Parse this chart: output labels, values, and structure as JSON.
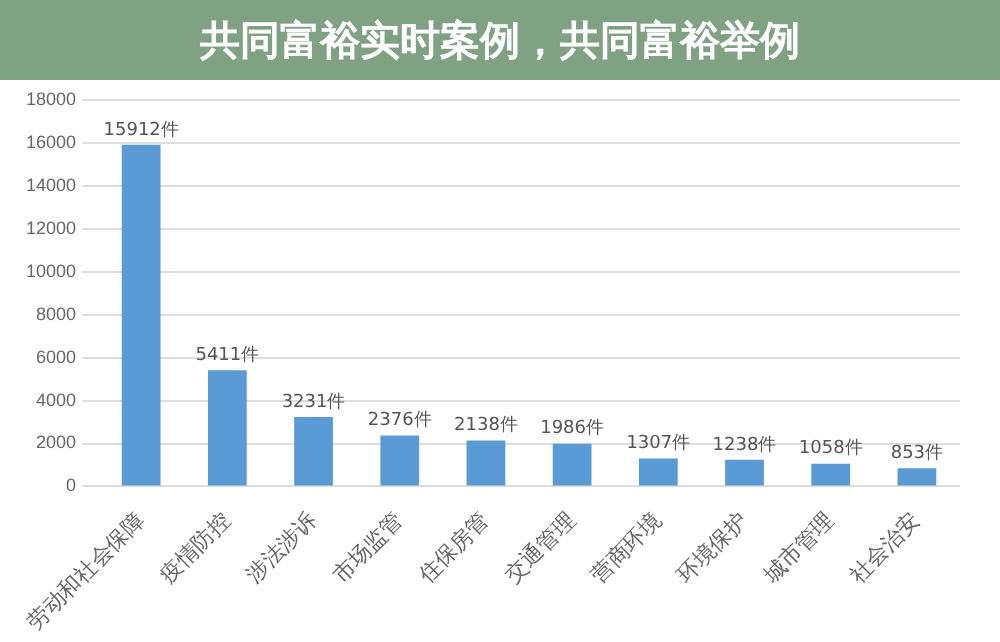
{
  "chart_data": {
    "type": "bar",
    "title": "共同富裕实时案例，共同富裕举例",
    "categories": [
      "劳动和社会保障",
      "疫情防控",
      "涉法涉诉",
      "市场监管",
      "住保房管",
      "交通管理",
      "营商环境",
      "环境保护",
      "城市管理",
      "社会治安"
    ],
    "values": [
      15912,
      5411,
      3231,
      2376,
      2138,
      1986,
      1307,
      1238,
      1058,
      853
    ],
    "value_labels": [
      "15912件",
      "5411件",
      "3231件",
      "2376件",
      "2138件",
      "1986件",
      "1307件",
      "1238件",
      "1058件",
      "853件"
    ],
    "color": "#5b9bd5",
    "ylim": [
      0,
      18000
    ],
    "yticks": [
      0,
      2000,
      4000,
      6000,
      8000,
      10000,
      12000,
      14000,
      16000,
      18000
    ],
    "grid": "y"
  }
}
